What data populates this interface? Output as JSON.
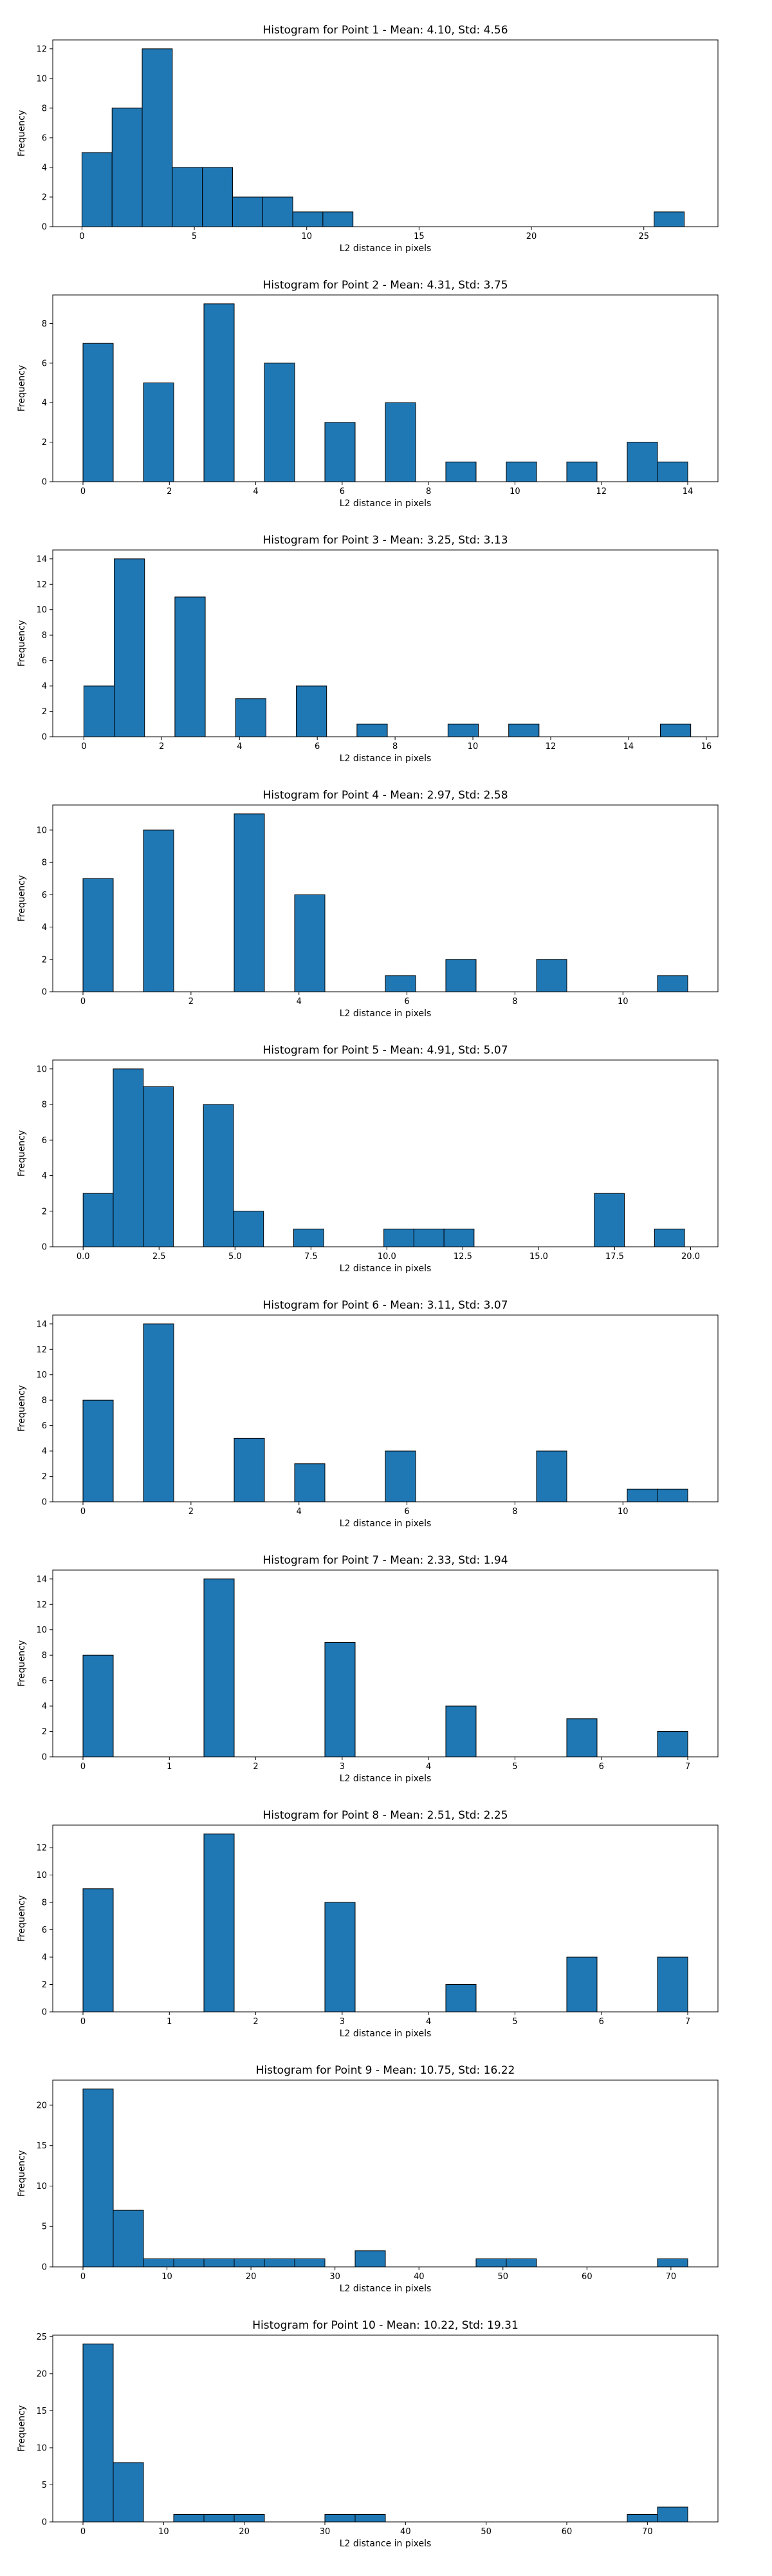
{
  "style": {
    "bar_color": "#1f77b4",
    "edge_color": "#000000"
  },
  "chart_data": [
    {
      "type": "bar",
      "title": "Histogram for Point 1 - Mean: 4.10, Std: 4.56",
      "xlabel": "L2 distance in pixels",
      "ylabel": "Frequency",
      "xlim": [
        -1.3,
        28.3
      ],
      "ylim": [
        0,
        12.6
      ],
      "xticks": [
        0,
        5,
        10,
        15,
        20,
        25
      ],
      "xtick_labels": [
        "0",
        "5",
        "10",
        "15",
        "20",
        "25"
      ],
      "yticks": [
        0,
        2,
        4,
        6,
        8,
        10,
        12
      ],
      "ytick_labels": [
        "0",
        "2",
        "4",
        "6",
        "8",
        "10",
        "12"
      ],
      "bin_edges": [
        0,
        1.34,
        2.68,
        4.02,
        5.36,
        6.7,
        8.04,
        9.38,
        10.72,
        12.06,
        13.4,
        14.74,
        16.08,
        17.42,
        18.76,
        20.1,
        21.44,
        22.78,
        24.12,
        25.46,
        26.8
      ],
      "counts": [
        5,
        8,
        12,
        4,
        4,
        2,
        2,
        1,
        1,
        0,
        0,
        0,
        0,
        0,
        0,
        0,
        0,
        0,
        0,
        1
      ]
    },
    {
      "type": "bar",
      "title": "Histogram for Point 2 - Mean: 4.31, Std: 3.75",
      "xlabel": "L2 distance in pixels",
      "ylabel": "Frequency",
      "xlim": [
        -0.7,
        14.7
      ],
      "ylim": [
        0,
        9.45
      ],
      "xticks": [
        0,
        2,
        4,
        6,
        8,
        10,
        12,
        14
      ],
      "xtick_labels": [
        "0",
        "2",
        "4",
        "6",
        "8",
        "10",
        "12",
        "14"
      ],
      "yticks": [
        0,
        2,
        4,
        6,
        8
      ],
      "ytick_labels": [
        "0",
        "2",
        "4",
        "6",
        "8"
      ],
      "bin_edges": [
        0,
        0.7,
        1.4,
        2.1,
        2.8,
        3.5,
        4.2,
        4.9,
        5.6,
        6.3,
        7.0,
        7.7,
        8.4,
        9.1,
        9.8,
        10.5,
        11.2,
        11.9,
        12.6,
        13.3,
        14.0
      ],
      "counts": [
        7,
        0,
        5,
        0,
        9,
        0,
        6,
        0,
        3,
        0,
        4,
        0,
        1,
        0,
        1,
        0,
        1,
        0,
        2,
        1
      ]
    },
    {
      "type": "bar",
      "title": "Histogram for Point 3 - Mean: 3.25, Std: 3.13",
      "xlabel": "L2 distance in pixels",
      "ylabel": "Frequency",
      "xlim": [
        -0.8,
        16.3
      ],
      "ylim": [
        0,
        14.7
      ],
      "xticks": [
        0,
        2,
        4,
        6,
        8,
        10,
        12,
        14,
        16
      ],
      "xtick_labels": [
        "0",
        "2",
        "4",
        "6",
        "8",
        "10",
        "12",
        "14",
        "16"
      ],
      "yticks": [
        0,
        2,
        4,
        6,
        8,
        10,
        12,
        14
      ],
      "ytick_labels": [
        "0",
        "2",
        "4",
        "6",
        "8",
        "10",
        "12",
        "14"
      ],
      "bin_edges": [
        0,
        0.78,
        1.56,
        2.34,
        3.12,
        3.9,
        4.68,
        5.46,
        6.24,
        7.02,
        7.8,
        8.58,
        9.36,
        10.14,
        10.92,
        11.7,
        12.48,
        13.26,
        14.04,
        14.82,
        15.6
      ],
      "counts": [
        4,
        14,
        0,
        11,
        0,
        3,
        0,
        4,
        0,
        1,
        0,
        0,
        1,
        0,
        1,
        0,
        0,
        0,
        0,
        1
      ]
    },
    {
      "type": "bar",
      "title": "Histogram for Point 4 - Mean: 2.97, Std: 2.58",
      "xlabel": "L2 distance in pixels",
      "ylabel": "Frequency",
      "xlim": [
        -0.56,
        11.76
      ],
      "ylim": [
        0,
        11.55
      ],
      "xticks": [
        0,
        2,
        4,
        6,
        8,
        10
      ],
      "xtick_labels": [
        "0",
        "2",
        "4",
        "6",
        "8",
        "10"
      ],
      "yticks": [
        0,
        2,
        4,
        6,
        8,
        10
      ],
      "ytick_labels": [
        "0",
        "2",
        "4",
        "6",
        "8",
        "10"
      ],
      "bin_edges": [
        0,
        0.56,
        1.12,
        1.68,
        2.24,
        2.8,
        3.36,
        3.92,
        4.48,
        5.04,
        5.6,
        6.16,
        6.72,
        7.28,
        7.84,
        8.4,
        8.96,
        9.52,
        10.08,
        10.64,
        11.2
      ],
      "counts": [
        7,
        0,
        10,
        0,
        0,
        11,
        0,
        6,
        0,
        0,
        1,
        0,
        2,
        0,
        0,
        2,
        0,
        0,
        0,
        1
      ]
    },
    {
      "type": "bar",
      "title": "Histogram for Point 5 - Mean: 4.91, Std: 5.07",
      "xlabel": "L2 distance in pixels",
      "ylabel": "Frequency",
      "xlim": [
        -1.0,
        20.9
      ],
      "ylim": [
        0,
        10.5
      ],
      "xticks": [
        0,
        2.5,
        5,
        7.5,
        10,
        12.5,
        15,
        17.5,
        20
      ],
      "xtick_labels": [
        "0.0",
        "2.5",
        "5.0",
        "7.5",
        "10.0",
        "12.5",
        "15.0",
        "17.5",
        "20.0"
      ],
      "yticks": [
        0,
        2,
        4,
        6,
        8,
        10
      ],
      "ytick_labels": [
        "0",
        "2",
        "4",
        "6",
        "8",
        "10"
      ],
      "bin_edges": [
        0,
        0.99,
        1.98,
        2.97,
        3.96,
        4.95,
        5.94,
        6.93,
        7.92,
        8.91,
        9.9,
        10.89,
        11.88,
        12.87,
        13.86,
        14.85,
        15.84,
        16.83,
        17.82,
        18.81,
        19.8
      ],
      "counts": [
        3,
        10,
        9,
        0,
        8,
        2,
        0,
        1,
        0,
        0,
        1,
        1,
        1,
        0,
        0,
        0,
        0,
        3,
        0,
        1
      ]
    },
    {
      "type": "bar",
      "title": "Histogram for Point 6 - Mean: 3.11, Std: 3.07",
      "xlabel": "L2 distance in pixels",
      "ylabel": "Frequency",
      "xlim": [
        -0.56,
        11.76
      ],
      "ylim": [
        0,
        14.7
      ],
      "xticks": [
        0,
        2,
        4,
        6,
        8,
        10
      ],
      "xtick_labels": [
        "0",
        "2",
        "4",
        "6",
        "8",
        "10"
      ],
      "yticks": [
        0,
        2,
        4,
        6,
        8,
        10,
        12,
        14
      ],
      "ytick_labels": [
        "0",
        "2",
        "4",
        "6",
        "8",
        "10",
        "12",
        "14"
      ],
      "bin_edges": [
        0,
        0.56,
        1.12,
        1.68,
        2.24,
        2.8,
        3.36,
        3.92,
        4.48,
        5.04,
        5.6,
        6.16,
        6.72,
        7.28,
        7.84,
        8.4,
        8.96,
        9.52,
        10.08,
        10.64,
        11.2
      ],
      "counts": [
        8,
        0,
        14,
        0,
        0,
        5,
        0,
        3,
        0,
        0,
        4,
        0,
        0,
        0,
        0,
        4,
        0,
        0,
        1,
        1
      ]
    },
    {
      "type": "bar",
      "title": "Histogram for Point 7 - Mean: 2.33, Std: 1.94",
      "xlabel": "L2 distance in pixels",
      "ylabel": "Frequency",
      "xlim": [
        -0.35,
        7.35
      ],
      "ylim": [
        0,
        14.7
      ],
      "xticks": [
        0,
        1,
        2,
        3,
        4,
        5,
        6,
        7
      ],
      "xtick_labels": [
        "0",
        "1",
        "2",
        "3",
        "4",
        "5",
        "6",
        "7"
      ],
      "yticks": [
        0,
        2,
        4,
        6,
        8,
        10,
        12,
        14
      ],
      "ytick_labels": [
        "0",
        "2",
        "4",
        "6",
        "8",
        "10",
        "12",
        "14"
      ],
      "bin_edges": [
        0,
        0.35,
        0.7,
        1.05,
        1.4,
        1.75,
        2.1,
        2.45,
        2.8,
        3.15,
        3.5,
        3.85,
        4.2,
        4.55,
        4.9,
        5.25,
        5.6,
        5.95,
        6.3,
        6.65,
        7.0
      ],
      "counts": [
        8,
        0,
        0,
        0,
        14,
        0,
        0,
        0,
        9,
        0,
        0,
        0,
        4,
        0,
        0,
        0,
        3,
        0,
        0,
        2
      ]
    },
    {
      "type": "bar",
      "title": "Histogram for Point 8 - Mean: 2.51, Std: 2.25",
      "xlabel": "L2 distance in pixels",
      "ylabel": "Frequency",
      "xlim": [
        -0.35,
        7.35
      ],
      "ylim": [
        0,
        13.65
      ],
      "xticks": [
        0,
        1,
        2,
        3,
        4,
        5,
        6,
        7
      ],
      "xtick_labels": [
        "0",
        "1",
        "2",
        "3",
        "4",
        "5",
        "6",
        "7"
      ],
      "yticks": [
        0,
        2,
        4,
        6,
        8,
        10,
        12
      ],
      "ytick_labels": [
        "0",
        "2",
        "4",
        "6",
        "8",
        "10",
        "12"
      ],
      "bin_edges": [
        0,
        0.35,
        0.7,
        1.05,
        1.4,
        1.75,
        2.1,
        2.45,
        2.8,
        3.15,
        3.5,
        3.85,
        4.2,
        4.55,
        4.9,
        5.25,
        5.6,
        5.95,
        6.3,
        6.65,
        7.0
      ],
      "counts": [
        9,
        0,
        0,
        0,
        13,
        0,
        0,
        0,
        8,
        0,
        0,
        0,
        2,
        0,
        0,
        0,
        4,
        0,
        0,
        4
      ]
    },
    {
      "type": "bar",
      "title": "Histogram for Point 9 - Mean: 10.75, Std: 16.22",
      "xlabel": "L2 distance in pixels",
      "ylabel": "Frequency",
      "xlim": [
        -3.6,
        75.6
      ],
      "ylim": [
        0,
        23.1
      ],
      "xticks": [
        0,
        10,
        20,
        30,
        40,
        50,
        60,
        70
      ],
      "xtick_labels": [
        "0",
        "10",
        "20",
        "30",
        "40",
        "50",
        "60",
        "70"
      ],
      "yticks": [
        0,
        5,
        10,
        15,
        20
      ],
      "ytick_labels": [
        "0",
        "5",
        "10",
        "15",
        "20"
      ],
      "bin_edges": [
        0,
        3.6,
        7.2,
        10.8,
        14.4,
        18.0,
        21.6,
        25.2,
        28.8,
        32.4,
        36.0,
        39.6,
        43.2,
        46.8,
        50.4,
        54.0,
        57.6,
        61.2,
        64.8,
        68.4,
        72.0
      ],
      "counts": [
        22,
        7,
        1,
        1,
        1,
        1,
        1,
        1,
        0,
        2,
        0,
        0,
        0,
        1,
        1,
        0,
        0,
        0,
        0,
        1
      ]
    },
    {
      "type": "bar",
      "title": "Histogram for Point 10 - Mean: 10.22, Std: 19.31",
      "xlabel": "L2 distance in pixels",
      "ylabel": "Frequency",
      "xlim": [
        -3.75,
        78.75
      ],
      "ylim": [
        0,
        25.2
      ],
      "xticks": [
        0,
        10,
        20,
        30,
        40,
        50,
        60,
        70
      ],
      "xtick_labels": [
        "0",
        "10",
        "20",
        "30",
        "40",
        "50",
        "60",
        "70"
      ],
      "yticks": [
        0,
        5,
        10,
        15,
        20,
        25
      ],
      "ytick_labels": [
        "0",
        "5",
        "10",
        "15",
        "20",
        "25"
      ],
      "bin_edges": [
        0,
        3.75,
        7.5,
        11.25,
        15.0,
        18.75,
        22.5,
        26.25,
        30.0,
        33.75,
        37.5,
        41.25,
        45.0,
        48.75,
        52.5,
        56.25,
        60.0,
        63.75,
        67.5,
        71.25,
        75.0
      ],
      "counts": [
        24,
        8,
        0,
        1,
        1,
        1,
        0,
        0,
        1,
        1,
        0,
        0,
        0,
        0,
        0,
        0,
        0,
        0,
        1,
        2
      ]
    }
  ]
}
